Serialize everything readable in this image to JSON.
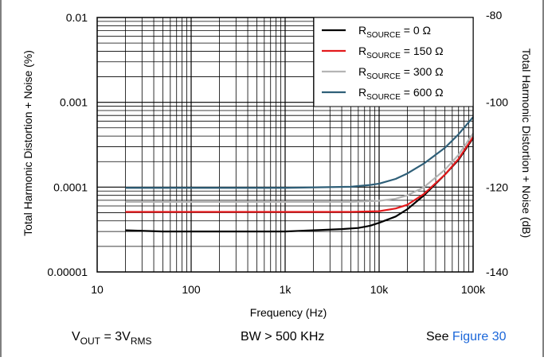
{
  "chart_data": {
    "type": "line",
    "x_scale": "log",
    "y_scale": "log",
    "xlabel": "Frequency (Hz)",
    "ylabel": "Total Harmonic Distortion + Noise (%)",
    "y2label": "Total Harmonic Distortion + Noise (dB)",
    "xlim": [
      10,
      100000
    ],
    "ylim": [
      1e-05,
      0.01
    ],
    "y2lim": [
      -140,
      -80
    ],
    "x_ticks": [
      "10",
      "100",
      "1k",
      "10k",
      "100k"
    ],
    "y_ticks": [
      "0.00001",
      "0.0001",
      "0.001",
      "0.01"
    ],
    "y2_ticks": [
      "-140",
      "-120",
      "-100",
      "-80"
    ],
    "grid": true,
    "legend_position": "top-right",
    "series": [
      {
        "name_main": "R",
        "name_sub": "SOURCE",
        "name_rest": " = 0 Ω",
        "color": "#000000",
        "x": [
          20,
          50,
          100,
          300,
          1000,
          2000,
          4000,
          6000,
          8000,
          10000,
          15000,
          20000,
          30000,
          50000,
          70000,
          100000
        ],
        "y": [
          3.1e-05,
          3e-05,
          3e-05,
          3e-05,
          3e-05,
          3.1e-05,
          3.2e-05,
          3.3e-05,
          3.5e-05,
          3.8e-05,
          4.5e-05,
          5.5e-05,
          8e-05,
          0.00014,
          0.00021,
          0.00038
        ]
      },
      {
        "name_main": "R",
        "name_sub": "SOURCE",
        "name_rest": " = 150 Ω",
        "color": "#e31a1c",
        "x": [
          20,
          100,
          1000,
          5000,
          10000,
          15000,
          20000,
          30000,
          50000,
          70000,
          100000
        ],
        "y": [
          5.1e-05,
          5.1e-05,
          5.1e-05,
          5.1e-05,
          5.2e-05,
          5.6e-05,
          6.2e-05,
          8.3e-05,
          0.00014,
          0.000215,
          0.00039
        ]
      },
      {
        "name_main": "R",
        "name_sub": "SOURCE",
        "name_rest": " = 300 Ω",
        "color": "#b4b4b4",
        "x": [
          20,
          100,
          1000,
          5000,
          10000,
          15000,
          20000,
          30000,
          50000,
          70000,
          100000
        ],
        "y": [
          6.7e-05,
          6.7e-05,
          6.7e-05,
          6.7e-05,
          6.9e-05,
          7.3e-05,
          8e-05,
          0.0001,
          0.00016,
          0.00024,
          0.00043
        ]
      },
      {
        "name_main": "R",
        "name_sub": "SOURCE",
        "name_rest": " = 600 Ω",
        "color": "#2f5f78",
        "x": [
          20,
          100,
          1000,
          5000,
          8000,
          10000,
          15000,
          20000,
          30000,
          50000,
          70000,
          100000
        ],
        "y": [
          9.8e-05,
          9.8e-05,
          9.8e-05,
          0.000101,
          0.000106,
          0.00011,
          0.000125,
          0.000145,
          0.00019,
          0.00029,
          0.00042,
          0.00067
        ]
      }
    ]
  },
  "footer": {
    "vout_main": "V",
    "vout_sub": "OUT",
    "vout_mid": " = 3V",
    "vout_sub2": "RMS",
    "bw": "BW > 500 KHz",
    "see_prefix": "See ",
    "see_link": "Figure 30",
    "link_color": "#1a66d9"
  }
}
